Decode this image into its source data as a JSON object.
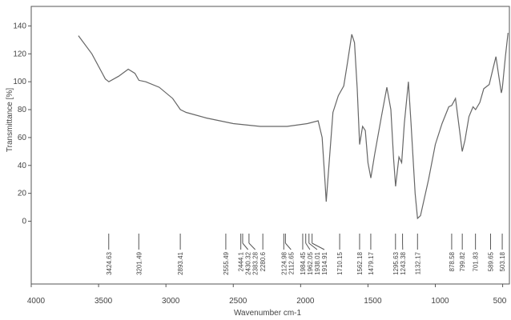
{
  "chart_data": {
    "type": "line",
    "xlabel": "Wavenumber cm-1",
    "ylabel": "Transmittance [%]",
    "x": [
      3650,
      3550,
      3450,
      3424,
      3350,
      3280,
      3230,
      3201,
      3150,
      3050,
      2950,
      2893,
      2850,
      2700,
      2500,
      2300,
      2100,
      1950,
      1870,
      1840,
      1820,
      1810,
      1790,
      1760,
      1720,
      1680,
      1650,
      1620,
      1600,
      1580,
      1562,
      1540,
      1520,
      1500,
      1479,
      1450,
      1400,
      1360,
      1330,
      1310,
      1295,
      1270,
      1250,
      1230,
      1200,
      1180,
      1150,
      1132,
      1110,
      1050,
      1000,
      950,
      900,
      878,
      850,
      820,
      800,
      780,
      750,
      720,
      701,
      670,
      640,
      600,
      570,
      550,
      530,
      510,
      503,
      480,
      460
    ],
    "values": [
      133,
      120,
      102,
      100,
      104,
      109,
      106,
      101,
      100,
      96,
      88,
      80,
      78,
      74,
      70,
      68,
      68,
      70,
      72,
      60,
      30,
      14,
      40,
      78,
      90,
      97,
      115,
      134,
      128,
      95,
      55,
      68,
      65,
      42,
      31,
      48,
      75,
      96,
      80,
      45,
      25,
      46,
      42,
      70,
      100,
      70,
      20,
      2,
      4,
      30,
      55,
      70,
      82,
      83,
      88,
      65,
      50,
      58,
      75,
      82,
      80,
      85,
      95,
      98,
      110,
      118,
      105,
      92,
      95,
      118,
      135
    ],
    "color": "#666666",
    "xlim": [
      4000,
      450
    ],
    "ylim": [
      -45,
      154
    ],
    "xticks": [
      4000,
      3500,
      3000,
      2500,
      2000,
      1500,
      1000,
      500
    ],
    "yticks": [
      0,
      20,
      40,
      60,
      80,
      100,
      120,
      140
    ],
    "peak_labels": [
      3424.63,
      3201.49,
      2893.41,
      2555.49,
      2444.1,
      2430.32,
      2383.28,
      2280.6,
      2124.98,
      2112.65,
      1984.45,
      1962.05,
      1938.01,
      1914.91,
      1710.15,
      1562.18,
      1479.17,
      1295.63,
      1243.38,
      1132.17,
      878.58,
      799.82,
      701.83,
      589.65,
      503.18
    ]
  }
}
